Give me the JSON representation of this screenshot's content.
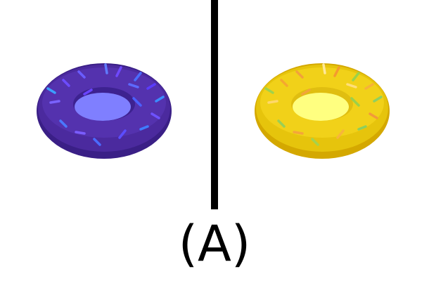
{
  "caption": "(A)",
  "colors": {
    "background": "#ffffff",
    "divider": "#000000",
    "left_donut_body": "#4b2a9e",
    "left_donut_dark": "#3a1f86",
    "left_donut_hole": "#7f7fff",
    "right_donut_body": "#e6c40c",
    "right_donut_dark": "#d4a800",
    "right_donut_hole": "#ffff80"
  },
  "images": [
    {
      "name": "purple-donut",
      "description_hidden": true
    },
    {
      "name": "yellow-donut",
      "description_hidden": true
    }
  ]
}
